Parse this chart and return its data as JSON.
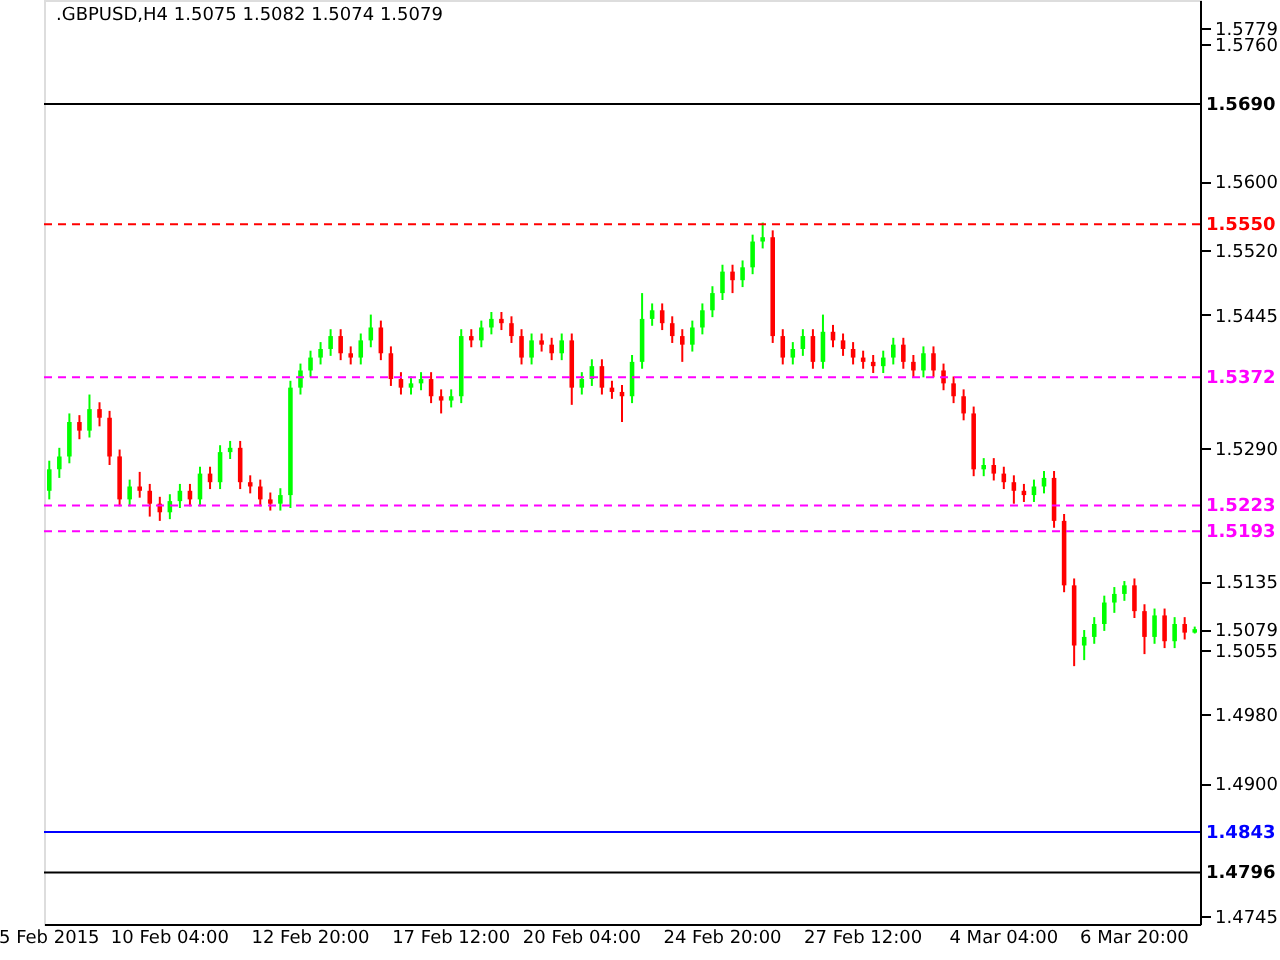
{
  "chart_data": {
    "type": "candlestick",
    "title": ".GBPUSD,H4  1.5075 1.5082 1.5074 1.5079",
    "categories": [
      "5 Feb 2015",
      null,
      null,
      null,
      null,
      null,
      null,
      null,
      null,
      null,
      null,
      null,
      "10 Feb 04:00",
      null,
      null,
      null,
      null,
      null,
      null,
      null,
      null,
      null,
      null,
      null,
      null,
      null,
      "12 Feb 20:00",
      null,
      null,
      null,
      null,
      null,
      null,
      null,
      null,
      null,
      null,
      null,
      null,
      null,
      "17 Feb 12:00",
      null,
      null,
      null,
      null,
      null,
      null,
      null,
      null,
      null,
      null,
      null,
      null,
      "20 Feb 04:00",
      null,
      null,
      null,
      null,
      null,
      null,
      null,
      null,
      null,
      null,
      null,
      null,
      null,
      "24 Feb 20:00",
      null,
      null,
      null,
      null,
      null,
      null,
      null,
      null,
      null,
      null,
      null,
      null,
      null,
      "27 Feb 12:00",
      null,
      null,
      null,
      null,
      null,
      null,
      null,
      null,
      null,
      null,
      null,
      null,
      null,
      "4 Mar 04:00",
      null,
      null,
      null,
      null,
      null,
      null,
      null,
      null,
      null,
      null,
      null,
      null,
      "6 Mar 20:00",
      null,
      null,
      null,
      null,
      null,
      null
    ],
    "ohlc": [
      [
        1.524,
        1.5275,
        1.523,
        1.5265
      ],
      [
        1.5265,
        1.529,
        1.5255,
        1.528
      ],
      [
        1.528,
        1.533,
        1.5272,
        1.532
      ],
      [
        1.532,
        1.5328,
        1.53,
        1.531
      ],
      [
        1.531,
        1.5352,
        1.5302,
        1.5335
      ],
      [
        1.5335,
        1.5343,
        1.5315,
        1.5325
      ],
      [
        1.5325,
        1.5333,
        1.527,
        1.528
      ],
      [
        1.528,
        1.5288,
        1.5222,
        1.523
      ],
      [
        1.523,
        1.5253,
        1.5222,
        1.5245
      ],
      [
        1.5245,
        1.5262,
        1.5232,
        1.524
      ],
      [
        1.524,
        1.5248,
        1.521,
        1.5225
      ],
      [
        1.5225,
        1.5233,
        1.5205,
        1.5215
      ],
      [
        1.5215,
        1.5236,
        1.5207,
        1.5228
      ],
      [
        1.5228,
        1.5248,
        1.522,
        1.524
      ],
      [
        1.524,
        1.5248,
        1.5222,
        1.523
      ],
      [
        1.523,
        1.5268,
        1.5222,
        1.526
      ],
      [
        1.526,
        1.5268,
        1.5242,
        1.525
      ],
      [
        1.525,
        1.5293,
        1.5242,
        1.5285
      ],
      [
        1.5285,
        1.5298,
        1.5277,
        1.529
      ],
      [
        1.529,
        1.5298,
        1.5242,
        1.525
      ],
      [
        1.525,
        1.5258,
        1.5237,
        1.5245
      ],
      [
        1.5245,
        1.5253,
        1.5222,
        1.523
      ],
      [
        1.523,
        1.5238,
        1.5217,
        1.5225
      ],
      [
        1.5225,
        1.5243,
        1.5217,
        1.5235
      ],
      [
        1.5235,
        1.5368,
        1.522,
        1.536
      ],
      [
        1.536,
        1.5388,
        1.5352,
        1.538
      ],
      [
        1.538,
        1.5403,
        1.5372,
        1.5395
      ],
      [
        1.5395,
        1.5413,
        1.5387,
        1.5405
      ],
      [
        1.5405,
        1.5428,
        1.5397,
        1.542
      ],
      [
        1.542,
        1.5428,
        1.5392,
        1.54
      ],
      [
        1.54,
        1.5408,
        1.5387,
        1.5395
      ],
      [
        1.5395,
        1.5423,
        1.5387,
        1.5415
      ],
      [
        1.5415,
        1.5445,
        1.5407,
        1.543
      ],
      [
        1.543,
        1.5438,
        1.5392,
        1.54
      ],
      [
        1.54,
        1.5408,
        1.5362,
        1.537
      ],
      [
        1.537,
        1.5378,
        1.5352,
        1.536
      ],
      [
        1.536,
        1.5373,
        1.5352,
        1.5365
      ],
      [
        1.5365,
        1.5378,
        1.5357,
        1.537
      ],
      [
        1.537,
        1.5378,
        1.5342,
        1.535
      ],
      [
        1.535,
        1.5358,
        1.533,
        1.5345
      ],
      [
        1.5345,
        1.5358,
        1.5337,
        1.535
      ],
      [
        1.535,
        1.5428,
        1.5342,
        1.542
      ],
      [
        1.542,
        1.5428,
        1.5407,
        1.5415
      ],
      [
        1.5415,
        1.5438,
        1.5407,
        1.543
      ],
      [
        1.543,
        1.5448,
        1.5422,
        1.544
      ],
      [
        1.544,
        1.5448,
        1.5427,
        1.5435
      ],
      [
        1.5435,
        1.5443,
        1.5412,
        1.542
      ],
      [
        1.542,
        1.5428,
        1.5387,
        1.5395
      ],
      [
        1.5395,
        1.5423,
        1.5387,
        1.5415
      ],
      [
        1.5415,
        1.5423,
        1.5402,
        1.541
      ],
      [
        1.541,
        1.5418,
        1.5392,
        1.54
      ],
      [
        1.54,
        1.5423,
        1.5392,
        1.5415
      ],
      [
        1.5415,
        1.5423,
        1.534,
        1.536
      ],
      [
        1.536,
        1.5378,
        1.5352,
        1.537
      ],
      [
        1.537,
        1.5393,
        1.5362,
        1.5385
      ],
      [
        1.5385,
        1.5393,
        1.5352,
        1.536
      ],
      [
        1.536,
        1.5368,
        1.5347,
        1.5355
      ],
      [
        1.5355,
        1.5363,
        1.532,
        1.535
      ],
      [
        1.535,
        1.5398,
        1.5342,
        1.539
      ],
      [
        1.539,
        1.547,
        1.5382,
        1.544
      ],
      [
        1.544,
        1.5458,
        1.5432,
        1.545
      ],
      [
        1.545,
        1.5458,
        1.5427,
        1.5435
      ],
      [
        1.5435,
        1.5443,
        1.5412,
        1.542
      ],
      [
        1.542,
        1.5428,
        1.539,
        1.541
      ],
      [
        1.541,
        1.5438,
        1.5402,
        1.543
      ],
      [
        1.543,
        1.5458,
        1.5422,
        1.545
      ],
      [
        1.545,
        1.5478,
        1.5442,
        1.547
      ],
      [
        1.547,
        1.5503,
        1.5462,
        1.5495
      ],
      [
        1.5495,
        1.5503,
        1.547,
        1.5485
      ],
      [
        1.5485,
        1.5508,
        1.5477,
        1.55
      ],
      [
        1.55,
        1.5538,
        1.5492,
        1.553
      ],
      [
        1.553,
        1.5552,
        1.5522,
        1.5535
      ],
      [
        1.5535,
        1.5543,
        1.5412,
        1.542
      ],
      [
        1.542,
        1.5428,
        1.5387,
        1.5395
      ],
      [
        1.5395,
        1.5413,
        1.5387,
        1.5405
      ],
      [
        1.5405,
        1.5428,
        1.5397,
        1.542
      ],
      [
        1.542,
        1.5428,
        1.5382,
        1.539
      ],
      [
        1.539,
        1.5445,
        1.5382,
        1.5425
      ],
      [
        1.5425,
        1.5433,
        1.5407,
        1.5415
      ],
      [
        1.5415,
        1.5423,
        1.5397,
        1.5405
      ],
      [
        1.5405,
        1.5413,
        1.5387,
        1.5395
      ],
      [
        1.5395,
        1.5403,
        1.5382,
        1.539
      ],
      [
        1.539,
        1.5398,
        1.5377,
        1.5385
      ],
      [
        1.5385,
        1.5403,
        1.5377,
        1.5395
      ],
      [
        1.5395,
        1.5418,
        1.5387,
        1.541
      ],
      [
        1.541,
        1.5418,
        1.5382,
        1.539
      ],
      [
        1.539,
        1.5398,
        1.5372,
        1.538
      ],
      [
        1.538,
        1.5408,
        1.5372,
        1.54
      ],
      [
        1.54,
        1.5408,
        1.5372,
        1.538
      ],
      [
        1.538,
        1.5388,
        1.5357,
        1.5365
      ],
      [
        1.5365,
        1.5373,
        1.5342,
        1.535
      ],
      [
        1.535,
        1.5358,
        1.5322,
        1.533
      ],
      [
        1.533,
        1.5338,
        1.5257,
        1.5265
      ],
      [
        1.5265,
        1.5278,
        1.5257,
        1.527
      ],
      [
        1.527,
        1.5278,
        1.5252,
        1.526
      ],
      [
        1.526,
        1.5268,
        1.5242,
        1.525
      ],
      [
        1.525,
        1.5258,
        1.5225,
        1.524
      ],
      [
        1.524,
        1.5248,
        1.5227,
        1.5235
      ],
      [
        1.5235,
        1.5253,
        1.5227,
        1.5245
      ],
      [
        1.5245,
        1.5263,
        1.5237,
        1.5255
      ],
      [
        1.5255,
        1.5263,
        1.5197,
        1.5205
      ],
      [
        1.5205,
        1.5213,
        1.5122,
        1.513
      ],
      [
        1.513,
        1.5138,
        1.5036,
        1.506
      ],
      [
        1.506,
        1.5078,
        1.5043,
        1.507
      ],
      [
        1.507,
        1.5093,
        1.5062,
        1.5085
      ],
      [
        1.5085,
        1.5118,
        1.5077,
        1.511
      ],
      [
        1.511,
        1.5128,
        1.5098,
        1.512
      ],
      [
        1.512,
        1.5135,
        1.5112,
        1.513
      ],
      [
        1.513,
        1.5138,
        1.5092,
        1.51
      ],
      [
        1.51,
        1.5108,
        1.505,
        1.507
      ],
      [
        1.507,
        1.5103,
        1.5062,
        1.5095
      ],
      [
        1.5095,
        1.5103,
        1.5057,
        1.5065
      ],
      [
        1.5065,
        1.5093,
        1.5057,
        1.5085
      ],
      [
        1.5085,
        1.5093,
        1.5067,
        1.5075
      ],
      [
        1.5075,
        1.5082,
        1.5074,
        1.5079
      ]
    ],
    "colors": [
      "#00ff00",
      "#00ff00",
      "#00ff00",
      "#ff0000",
      "#00ff00",
      "#ff0000",
      "#ff0000",
      "#ff0000",
      "#00ff00",
      "#ff0000",
      "#ff0000",
      "#ff0000",
      "#00ff00",
      "#00ff00",
      "#ff0000",
      "#00ff00",
      "#ff0000",
      "#00ff00",
      "#00ff00",
      "#ff0000",
      "#ff0000",
      "#ff0000",
      "#ff0000",
      "#00ff00",
      "#00ff00",
      "#00ff00",
      "#00ff00",
      "#00ff00",
      "#00ff00",
      "#ff0000",
      "#ff0000",
      "#00ff00",
      "#00ff00",
      "#ff0000",
      "#ff0000",
      "#ff0000",
      "#00ff00",
      "#00ff00",
      "#ff0000",
      "#ff0000",
      "#00ff00",
      "#00ff00",
      "#ff0000",
      "#00ff00",
      "#00ff00",
      "#ff0000",
      "#ff0000",
      "#ff0000",
      "#00ff00",
      "#ff0000",
      "#ff0000",
      "#00ff00",
      "#ff0000",
      "#00ff00",
      "#00ff00",
      "#ff0000",
      "#ff0000",
      "#ff0000",
      "#00ff00",
      "#00ff00",
      "#00ff00",
      "#ff0000",
      "#ff0000",
      "#ff0000",
      "#00ff00",
      "#00ff00",
      "#00ff00",
      "#00ff00",
      "#ff0000",
      "#00ff00",
      "#00ff00",
      "#00ff00",
      "#ff0000",
      "#ff0000",
      "#00ff00",
      "#00ff00",
      "#ff0000",
      "#00ff00",
      "#ff0000",
      "#ff0000",
      "#ff0000",
      "#ff0000",
      "#ff0000",
      "#00ff00",
      "#00ff00",
      "#ff0000",
      "#ff0000",
      "#00ff00",
      "#ff0000",
      "#ff0000",
      "#ff0000",
      "#ff0000",
      "#ff0000",
      "#00ff00",
      "#ff0000",
      "#ff0000",
      "#ff0000",
      "#ff0000",
      "#00ff00",
      "#00ff00",
      "#ff0000",
      "#ff0000",
      "#ff0000",
      "#00ff00",
      "#00ff00",
      "#00ff00",
      "#00ff00",
      "#00ff00",
      "#ff0000",
      "#ff0000",
      "#00ff00",
      "#ff0000",
      "#00ff00",
      "#ff0000",
      "#00ff00"
    ],
    "ylim": [
      1.4736,
      1.5811
    ],
    "yticks": [
      {
        "value": 1.5779,
        "label": "1.5779"
      },
      {
        "value": 1.576,
        "label": "1.5760"
      },
      {
        "value": 1.56,
        "label": "1.5600"
      },
      {
        "value": 1.552,
        "label": "1.5520"
      },
      1.5445,
      {
        "value": 1.529,
        "label": "1.5290"
      },
      1.5135,
      {
        "value": 1.5079,
        "label": "1.5079"
      },
      1.5055,
      {
        "value": 1.498,
        "label": "1.4980"
      },
      {
        "value": 1.49,
        "label": "1.4900"
      },
      1.4745
    ],
    "ref_lines": [
      {
        "axis": "y",
        "value": 1.569,
        "label": "1.5690",
        "color": "#000000",
        "line_style": "solid"
      },
      {
        "axis": "y",
        "value": 1.555,
        "label": "1.5550",
        "color": "#ff0000",
        "line_style": "dashed"
      },
      {
        "axis": "y",
        "value": 1.5372,
        "label": "1.5372",
        "color": "#ff00ff",
        "line_style": "dashed"
      },
      {
        "axis": "y",
        "value": 1.5223,
        "label": "1.5223",
        "color": "#ff00ff",
        "line_style": "dashed"
      },
      {
        "axis": "y",
        "value": 1.5193,
        "label": "1.5193",
        "color": "#ff00ff",
        "line_style": "dashed"
      },
      {
        "axis": "y",
        "value": 1.4843,
        "label": "1.4843",
        "color": "#0000ff",
        "line_style": "solid"
      },
      {
        "axis": "y",
        "value": 1.4796,
        "label": "1.4796",
        "color": "#000000",
        "line_style": "solid"
      }
    ],
    "grid": false
  }
}
